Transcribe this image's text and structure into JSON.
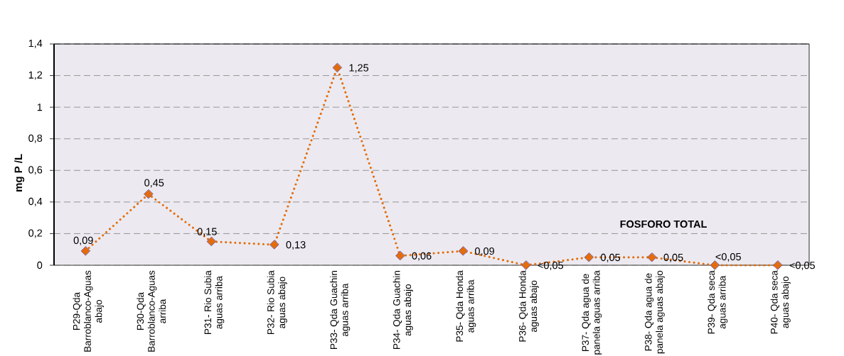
{
  "chart_data": {
    "type": "line",
    "title": "FOSFORO TOTAL",
    "ylabel": "mg P /L",
    "categories": [
      "P29-Qda Barroblanco-Aguas abajo",
      "P30-Qda Barroblanco-Aguas arriba",
      "P31- Rio Subia aguas arriba",
      "P32- Rio Subia aguas abajo",
      "P33- Qda Guachin aguas arriba",
      "P34- Qda Guachin aguas abajo",
      "P35- Qda Honda aguas arriba",
      "P36- Qda Honda aguas abajo",
      "P37- Qda agua de panela aguas arriba",
      "P38- Qda agua de panela aguas abajo",
      "P39- Qda seca aguas arriba",
      "P40- Qda seca aguas abajo"
    ],
    "values": [
      0.09,
      0.45,
      0.15,
      0.13,
      1.25,
      0.06,
      0.09,
      0,
      0.05,
      0.05,
      0,
      0
    ],
    "value_labels": [
      "0,09",
      "0,45",
      "0,15",
      "0,13",
      "1,25",
      "0,06",
      "0,09",
      "<0,05",
      "0,05",
      "0,05",
      "<0,05",
      "<0,05"
    ],
    "color": "#e46c0a",
    "marker": "diamond",
    "line_style": "dotted",
    "grid": "y",
    "ylim": [
      0,
      1.4
    ],
    "yticks": [
      0,
      {
        "value": 0.2,
        "label": "0,2"
      },
      {
        "value": 0.4,
        "label": "0,4"
      },
      {
        "value": 0.6,
        "label": "0,6"
      },
      {
        "value": 0.8,
        "label": "0,8"
      },
      1,
      {
        "value": 1.2,
        "label": "1,2"
      },
      {
        "value": 1.4,
        "label": "1,4"
      }
    ]
  }
}
